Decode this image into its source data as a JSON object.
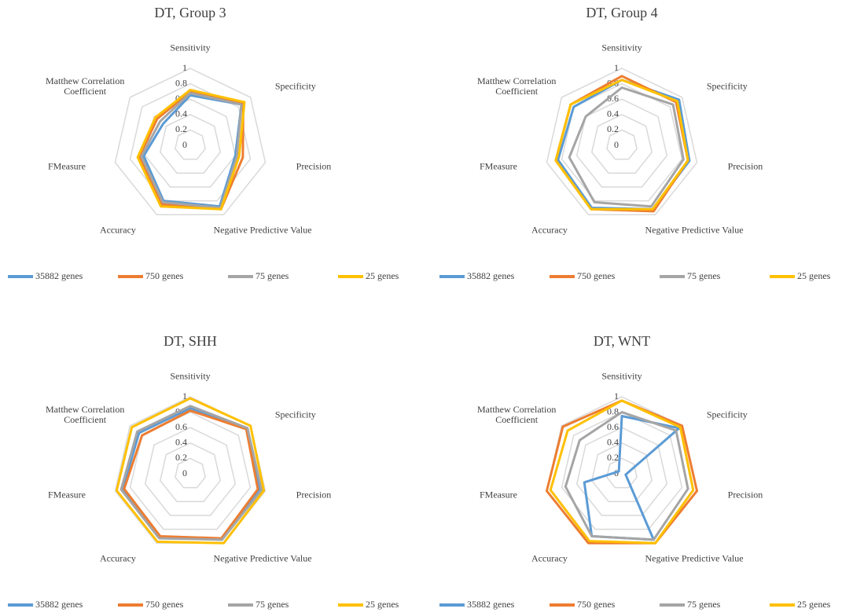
{
  "chart_data": [
    {
      "type": "radar",
      "title": "DT, Group 3",
      "categories": [
        "Sensitivity",
        "Specificity",
        "Precision",
        "Negative Predictive Value",
        "Accuracy",
        "FMeasure",
        "Matthew Correlation Coefficient"
      ],
      "ylim": [
        0,
        1
      ],
      "yticks": [
        0,
        0.2,
        0.4,
        0.6,
        0.8,
        1
      ],
      "grid": true,
      "legend": "bottom",
      "series": [
        {
          "name": "35882 genes",
          "color": "#5b9bd5",
          "values": [
            0.65,
            0.85,
            0.6,
            0.88,
            0.8,
            0.62,
            0.45
          ]
        },
        {
          "name": "750 genes",
          "color": "#ed7d31",
          "values": [
            0.7,
            0.88,
            0.7,
            0.92,
            0.85,
            0.68,
            0.55
          ]
        },
        {
          "name": "75 genes",
          "color": "#a5a5a5",
          "values": [
            0.68,
            0.85,
            0.62,
            0.9,
            0.82,
            0.65,
            0.5
          ]
        },
        {
          "name": "25 genes",
          "color": "#ffc000",
          "values": [
            0.72,
            0.9,
            0.65,
            0.92,
            0.88,
            0.7,
            0.58
          ]
        }
      ]
    },
    {
      "type": "radar",
      "title": "DT, Group 4",
      "categories": [
        "Sensitivity",
        "Specificity",
        "Precision",
        "Negative Predictive Value",
        "Accuracy",
        "FMeasure",
        "Matthew Correlation Coefficient"
      ],
      "ylim": [
        0,
        1
      ],
      "yticks": [
        0,
        0.2,
        0.4,
        0.6,
        0.8,
        1
      ],
      "grid": true,
      "legend": "bottom",
      "series": [
        {
          "name": "35882 genes",
          "color": "#5b9bd5",
          "values": [
            0.85,
            0.95,
            0.9,
            0.92,
            0.9,
            0.85,
            0.8
          ]
        },
        {
          "name": "750 genes",
          "color": "#ed7d31",
          "values": [
            0.9,
            0.9,
            0.88,
            0.95,
            0.92,
            0.88,
            0.85
          ]
        },
        {
          "name": "75 genes",
          "color": "#a5a5a5",
          "values": [
            0.75,
            0.85,
            0.82,
            0.88,
            0.82,
            0.7,
            0.6
          ]
        },
        {
          "name": "25 genes",
          "color": "#ffc000",
          "values": [
            0.85,
            0.92,
            0.88,
            0.92,
            0.92,
            0.88,
            0.85
          ]
        }
      ]
    },
    {
      "type": "radar",
      "title": "DT, SHH",
      "categories": [
        "Sensitivity",
        "Specificity",
        "Precision",
        "Negative Predictive Value",
        "Accuracy",
        "FMeasure",
        "Matthew Correlation Coefficient"
      ],
      "ylim": [
        0,
        1
      ],
      "yticks": [
        0,
        0.2,
        0.4,
        0.6,
        0.8,
        1
      ],
      "grid": true,
      "legend": "bottom",
      "series": [
        {
          "name": "35882 genes",
          "color": "#5b9bd5",
          "values": [
            0.85,
            0.95,
            0.93,
            0.95,
            0.92,
            0.9,
            0.85
          ]
        },
        {
          "name": "750 genes",
          "color": "#ed7d31",
          "values": [
            0.82,
            0.93,
            0.9,
            0.93,
            0.9,
            0.88,
            0.8
          ]
        },
        {
          "name": "75 genes",
          "color": "#a5a5a5",
          "values": [
            0.88,
            0.95,
            0.95,
            0.95,
            0.93,
            0.92,
            0.88
          ]
        },
        {
          "name": "25 genes",
          "color": "#ffc000",
          "values": [
            0.98,
            1,
            0.98,
            1,
            0.98,
            0.98,
            0.97
          ]
        }
      ]
    },
    {
      "type": "radar",
      "title": "DT, WNT",
      "categories": [
        "Sensitivity",
        "Specificity",
        "Precision",
        "Negative Predictive Value",
        "Accuracy",
        "FMeasure",
        "Matthew Correlation Coefficient"
      ],
      "ylim": [
        0,
        1
      ],
      "yticks": [
        0,
        0.2,
        0.4,
        0.6,
        0.8,
        1
      ],
      "grid": true,
      "legend": "bottom",
      "series": [
        {
          "name": "35882 genes",
          "color": "#5b9bd5",
          "values": [
            0.75,
            0.95,
            0.05,
            0.95,
            0.9,
            0.5,
            0.05
          ]
        },
        {
          "name": "750 genes",
          "color": "#ed7d31",
          "values": [
            0.95,
            1,
            1,
            1,
            1,
            1,
            0.98
          ]
        },
        {
          "name": "75 genes",
          "color": "#a5a5a5",
          "values": [
            0.8,
            0.9,
            0.88,
            0.95,
            0.9,
            0.75,
            0.7
          ]
        },
        {
          "name": "25 genes",
          "color": "#ffc000",
          "values": [
            0.95,
            0.97,
            0.95,
            1,
            0.97,
            0.95,
            0.9
          ]
        }
      ]
    }
  ]
}
